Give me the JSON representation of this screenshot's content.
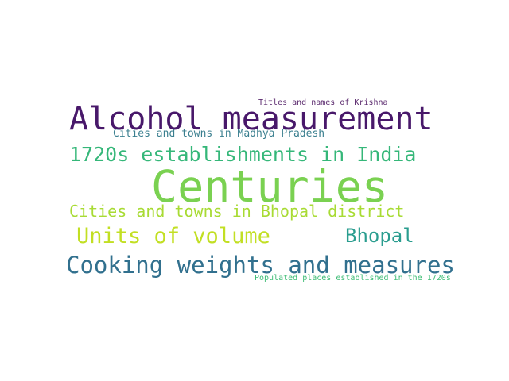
{
  "words": [
    {
      "text": "Titles and names of Krishna",
      "color": "#5b2a6e"
    },
    {
      "text": "Alcohol measurement",
      "color": "#48186a"
    },
    {
      "text": "Cities and towns in Madhya Pradesh",
      "color": "#3a7f8f"
    },
    {
      "text": "1720s establishments in India",
      "color": "#35b779"
    },
    {
      "text": "Centuries",
      "color": "#7ad151"
    },
    {
      "text": "Cities and towns in Bhopal district",
      "color": "#a8db34"
    },
    {
      "text": "Units of volume",
      "color": "#c2df23"
    },
    {
      "text": "Bhopal",
      "color": "#2a9d8f"
    },
    {
      "text": "Cooking weights and measures",
      "color": "#31708e"
    },
    {
      "text": "Populated places established in the 1720s",
      "color": "#3dbc74"
    }
  ]
}
